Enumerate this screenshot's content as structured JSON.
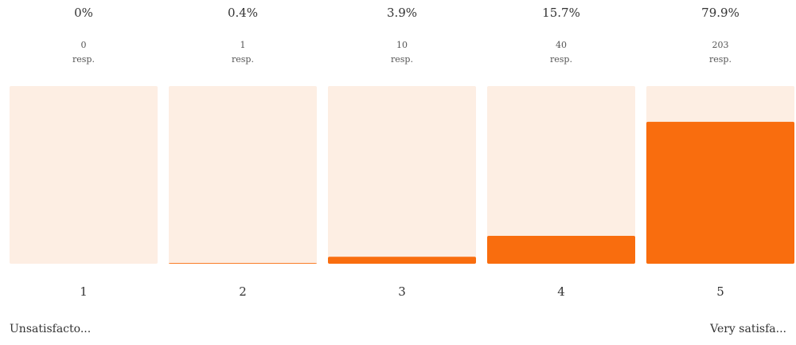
{
  "chart_data": {
    "type": "bar",
    "categories": [
      "1",
      "2",
      "3",
      "4",
      "5"
    ],
    "values": [
      0,
      0.4,
      3.9,
      15.7,
      79.9
    ],
    "value_labels": [
      "0%",
      "0.4%",
      "3.9%",
      "15.7%",
      "79.9%"
    ],
    "responses": [
      0,
      1,
      10,
      40,
      203
    ],
    "response_unit": "resp.",
    "scale_low_label": "Unsatisfacto...",
    "scale_high_label": "Very satisfa...",
    "ylim": [
      0,
      100
    ],
    "color": "#f96d0e",
    "track_color": "#fdeee3"
  }
}
